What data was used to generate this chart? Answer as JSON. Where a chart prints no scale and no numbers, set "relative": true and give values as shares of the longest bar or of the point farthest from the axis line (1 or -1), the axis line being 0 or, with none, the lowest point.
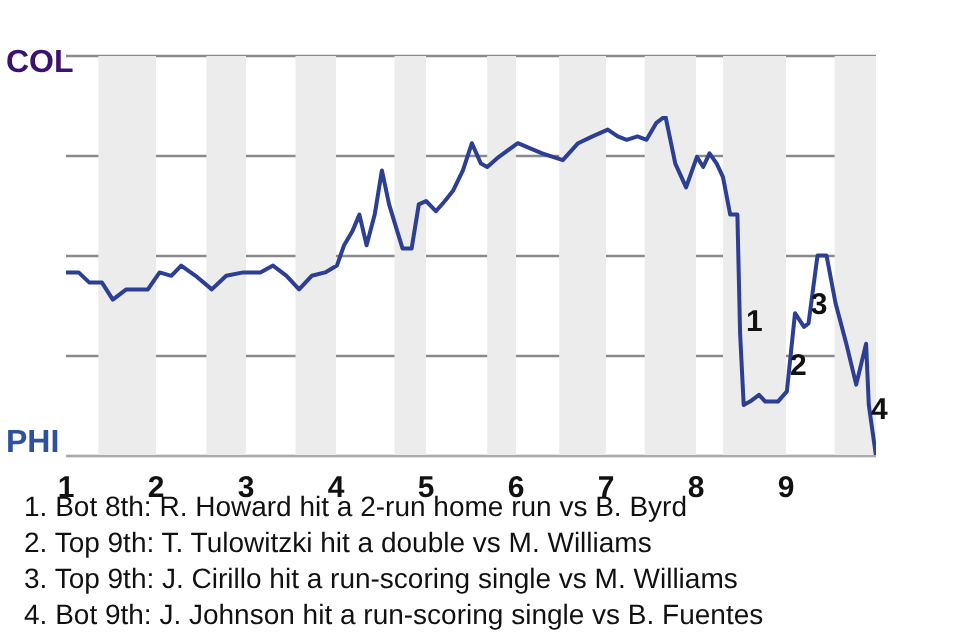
{
  "chart_data": {
    "type": "line",
    "relative": true,
    "x": [
      1.0,
      1.14,
      1.26,
      1.4,
      1.52,
      1.67,
      1.91,
      2.04,
      2.17,
      2.28,
      2.44,
      2.62,
      2.78,
      2.97,
      3.16,
      3.3,
      3.45,
      3.59,
      3.73,
      3.88,
      4.01,
      4.09,
      4.18,
      4.26,
      4.34,
      4.43,
      4.51,
      4.59,
      4.67,
      4.74,
      4.84,
      4.92,
      5.0,
      5.11,
      5.21,
      5.3,
      5.41,
      5.51,
      5.61,
      5.68,
      5.81,
      6.02,
      6.29,
      6.52,
      6.69,
      6.85,
      7.02,
      7.13,
      7.23,
      7.35,
      7.45,
      7.56,
      7.66,
      7.77,
      7.89,
      8.01,
      8.08,
      8.15,
      8.23,
      8.3,
      8.38,
      8.46,
      8.49,
      8.53,
      8.6,
      8.7,
      8.77,
      8.91,
      9.01,
      9.1,
      9.2,
      9.25,
      9.35,
      9.45,
      9.55,
      9.67,
      9.78,
      9.89,
      9.92,
      10.0
    ],
    "series": [
      {
        "color": "#2c3f94",
        "values": [
          0.54,
          0.54,
          0.51,
          0.51,
          0.46,
          0.49,
          0.49,
          0.54,
          0.53,
          0.56,
          0.53,
          0.49,
          0.53,
          0.54,
          0.54,
          0.56,
          0.53,
          0.49,
          0.53,
          0.54,
          0.56,
          0.62,
          0.66,
          0.71,
          0.62,
          0.71,
          0.84,
          0.74,
          0.67,
          0.61,
          0.61,
          0.74,
          0.75,
          0.72,
          0.75,
          0.78,
          0.84,
          0.92,
          0.86,
          0.85,
          0.88,
          0.92,
          0.89,
          0.87,
          0.92,
          0.94,
          0.96,
          0.94,
          0.93,
          0.94,
          0.93,
          0.98,
          1,
          0.86,
          0.79,
          0.88,
          0.85,
          0.89,
          0.86,
          0.82,
          0.71,
          0.71,
          0.36,
          0.15,
          0.16,
          0.18,
          0.16,
          0.16,
          0.19,
          0.42,
          0.38,
          0.39,
          0.59,
          0.59,
          0.45,
          0.33,
          0.21,
          0.33,
          0.15,
          0
        ]
      }
    ],
    "xlim": [
      1,
      10
    ],
    "xticks": [
      1,
      2,
      3,
      4,
      5,
      6,
      7,
      8,
      9
    ],
    "grid": "y",
    "legend": false,
    "marker": "none",
    "line_style": "solid",
    "bands": [
      {
        "axis": "x",
        "from": 1.36,
        "to": 2,
        "color": "#ececec"
      },
      {
        "axis": "x",
        "from": 2.56,
        "to": 3,
        "color": "#ececec"
      },
      {
        "axis": "x",
        "from": 3.55,
        "to": 4,
        "color": "#ececec"
      },
      {
        "axis": "x",
        "from": 4.65,
        "to": 5,
        "color": "#ececec"
      },
      {
        "axis": "x",
        "from": 5.68,
        "to": 6,
        "color": "#ececec"
      },
      {
        "axis": "x",
        "from": 6.48,
        "to": 7,
        "color": "#ececec"
      },
      {
        "axis": "x",
        "from": 7.43,
        "to": 8,
        "color": "#ececec"
      },
      {
        "axis": "x",
        "from": 8.3,
        "to": 9,
        "color": "#ececec"
      },
      {
        "axis": "x",
        "from": 9.54,
        "to": 10,
        "color": "#ececec"
      }
    ],
    "annotations": [
      "COL",
      "PHI",
      {
        "text": "1",
        "x": 8.51,
        "y": 0.4
      },
      {
        "text": "2",
        "x": 9.0,
        "y": 0.27
      },
      {
        "text": "3",
        "x": 9.23,
        "y": 0.45
      },
      {
        "text": "4",
        "x": 9.9,
        "y": 0.14
      },
      "1. Bot 8th: R. Howard hit a 2-run home run vs B. Byrd",
      "2. Top 9th: T. Tulowitzki hit a double vs M. Williams",
      "3. Top 9th: J. Cirillo hit a run-scoring single vs M. Williams",
      "4. Bot 9th: J. Johnson hit a run-scoring single vs B. Fuentes"
    ]
  }
}
